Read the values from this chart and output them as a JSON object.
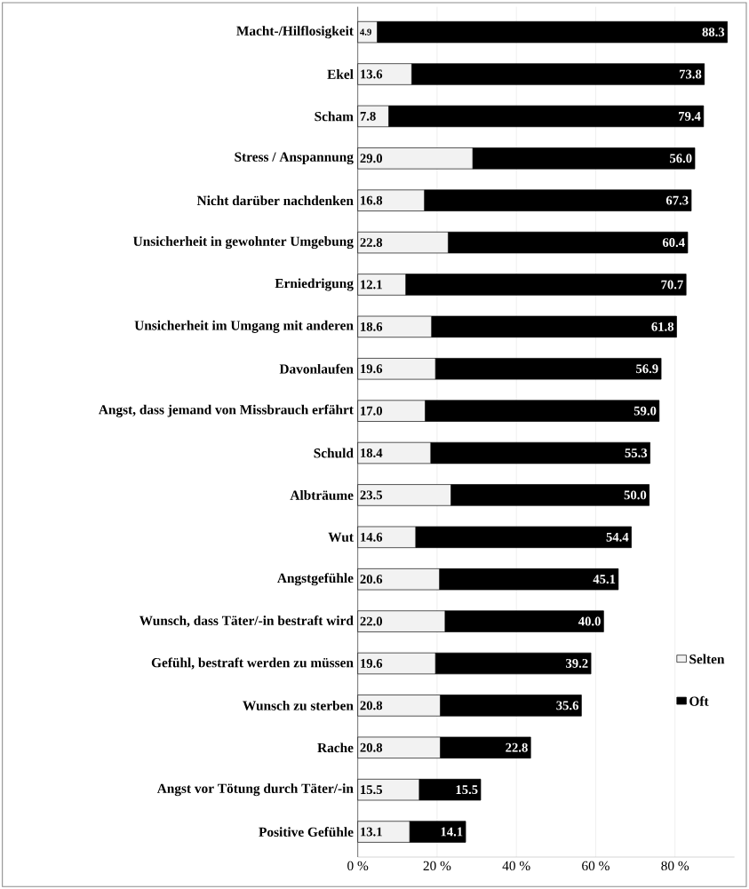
{
  "chart_data": {
    "type": "bar",
    "orientation": "horizontal",
    "stacked": true,
    "categories": [
      "Macht-/Hilflosigkeit",
      "Ekel",
      "Scham",
      "Stress / Anspannung",
      "Nicht darüber nachdenken",
      "Unsicherheit in gewohnter Umgebung",
      "Erniedrigung",
      "Unsicherheit im Umgang mit anderen",
      "Davonlaufen",
      "Angst, dass jemand von Missbrauch erfährt",
      "Schuld",
      "Albträume",
      "Wut",
      "Angstgefühle",
      "Wunsch, dass Täter/-in bestraft wird",
      "Gefühl, bestraft werden zu müssen",
      "Wunsch zu sterben",
      "Rache",
      "Angst vor Tötung durch  Täter/-in",
      "Positive Gefühle"
    ],
    "series": [
      {
        "name": "Selten",
        "color": "#f2f2f2",
        "values": [
          4.9,
          13.6,
          7.8,
          29.0,
          16.8,
          22.8,
          12.1,
          18.6,
          19.6,
          17.0,
          18.4,
          23.5,
          14.6,
          20.6,
          22.0,
          19.6,
          20.8,
          20.8,
          15.5,
          13.1
        ],
        "value_labels": [
          "4.9",
          "13.6",
          "7.8",
          "29.0",
          "16.8",
          "22.8",
          "12.1",
          "18.6",
          "19.6",
          "17.0",
          "18.4",
          "23.5",
          "14.6",
          "20.6",
          "22.0",
          "19.6",
          "20.8",
          "20.8",
          "15.5",
          "13.1"
        ]
      },
      {
        "name": "Oft",
        "color": "#000000",
        "values": [
          88.3,
          73.8,
          79.4,
          56.0,
          67.3,
          60.4,
          70.7,
          61.8,
          56.9,
          59.0,
          55.3,
          50.0,
          54.4,
          45.1,
          40.0,
          39.2,
          35.6,
          22.8,
          15.5,
          14.1
        ],
        "value_labels": [
          "88.3",
          "73.8",
          "79.4",
          "56.0",
          "67.3",
          "60.4",
          "70.7",
          "61.8",
          "56.9",
          "59.0",
          "55.3",
          "50.0",
          "54.4",
          "45.1",
          "40.0",
          "39.2",
          "35.6",
          "22.8",
          "15.5",
          "14.1"
        ]
      }
    ],
    "xlim": [
      0,
      95
    ],
    "xticks": [
      {
        "value": 0,
        "label": "0 %"
      },
      {
        "value": 20,
        "label": "20 %"
      },
      {
        "value": 40,
        "label": "40 %"
      },
      {
        "value": 60,
        "label": "60 %"
      },
      {
        "value": 80,
        "label": "80 %"
      }
    ],
    "grid": "x",
    "legend": "bottom right"
  }
}
